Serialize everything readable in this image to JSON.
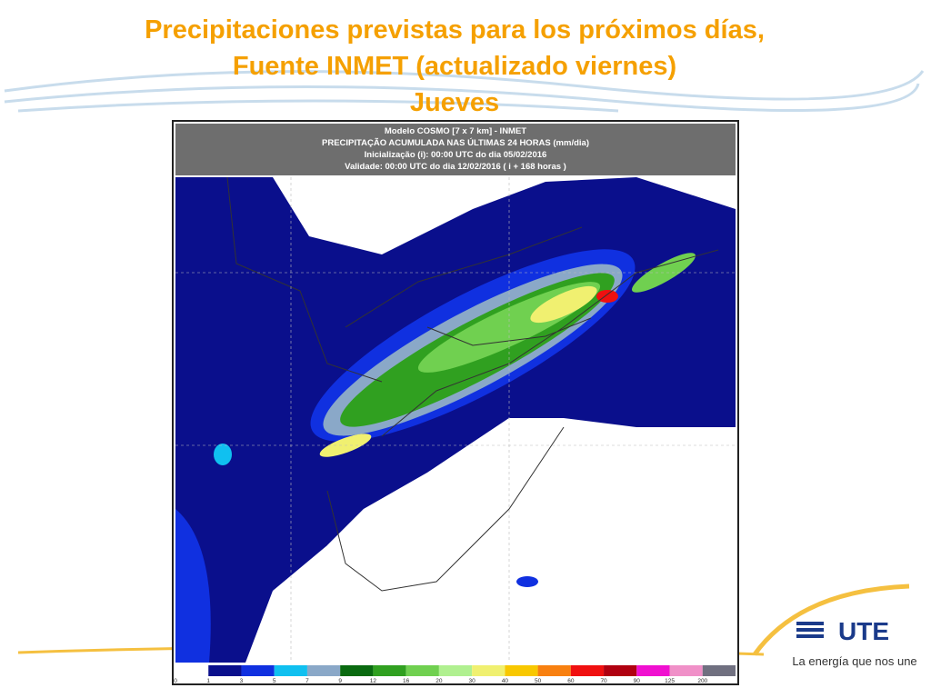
{
  "slide": {
    "title_lines": [
      "Precipitaciones previstas para los próximos días,",
      "Fuente INMET (actualizado viernes)",
      "Jueves"
    ],
    "map": {
      "header_lines": [
        "Modelo COSMO [7 x 7 km] - INMET",
        "PRECIPITAÇÃO ACUMULADA NAS ÚLTIMAS 24 HORAS (mm/dia)",
        "Inicialização (i): 00:00 UTC do dia 05/02/2016",
        "Validade: 00:00 UTC do dia 12/02/2016 ( i + 168 horas )"
      ],
      "legend": {
        "ticks": [
          0,
          1,
          3,
          5,
          7,
          9,
          12,
          16,
          20,
          30,
          40,
          50,
          60,
          70,
          90,
          125,
          200
        ],
        "colors": [
          "#ffffff",
          "#0a0f8c",
          "#1030e0",
          "#10c0f0",
          "#8aa8c8",
          "#0a6a10",
          "#30a020",
          "#70d050",
          "#b0f090",
          "#f0f070",
          "#f8c800",
          "#f88010",
          "#f01010",
          "#b00010",
          "#f010d0",
          "#f090c8",
          "#707080"
        ]
      }
    },
    "logo": {
      "name": "UTE",
      "tagline": "La energía que nos une"
    }
  }
}
